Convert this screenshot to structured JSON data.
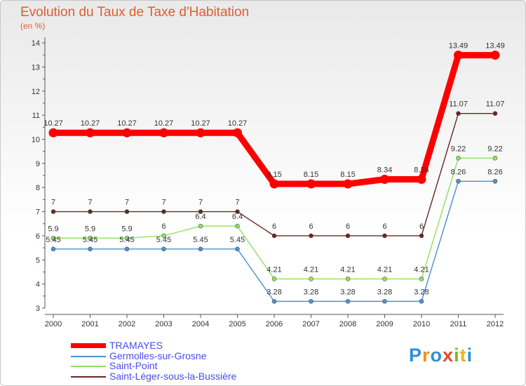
{
  "title": "Evolution du Taux de Taxe d'Habitation",
  "subtitle": "(en %)",
  "logo": {
    "text": "Proxiti",
    "letters": [
      "P",
      "r",
      "o",
      "x",
      "i",
      "t",
      "i"
    ],
    "colors": [
      "#2e8fd6",
      "#f08c1e",
      "#2e8fd6",
      "#e8452c",
      "#7bb81f",
      "#f0b21e",
      "#2e8fd6"
    ]
  },
  "chart_data": {
    "type": "line",
    "x": [
      "2000",
      "2001",
      "2002",
      "2003",
      "2004",
      "2005",
      "2006",
      "2007",
      "2008",
      "2009",
      "2010",
      "2011",
      "2012"
    ],
    "y_ticks": [
      "3",
      "4",
      "5",
      "6",
      "7",
      "8",
      "9",
      "10",
      "11",
      "12",
      "13",
      "14"
    ],
    "ylim": [
      3,
      14
    ],
    "grid": false,
    "legend_position": "bottom-left",
    "series": [
      {
        "name": "TRAMAYES",
        "color": "#ff0000",
        "values": [
          10.27,
          10.27,
          10.27,
          10.27,
          10.27,
          10.27,
          8.15,
          8.15,
          8.15,
          8.34,
          8.34,
          13.49,
          13.49
        ],
        "labels": [
          "10.27",
          "10.27",
          "10.27",
          "10.27",
          "10.27",
          "10.27",
          "8.15",
          "8.15",
          "8.15",
          "8.34",
          "8.34",
          "13.49",
          "13.49"
        ]
      },
      {
        "name": "Germolles-sur-Grosne",
        "color": "#4f8fcf",
        "values": [
          5.45,
          5.45,
          5.45,
          5.45,
          5.45,
          5.45,
          3.28,
          3.28,
          3.28,
          3.28,
          3.28,
          8.26,
          8.26
        ],
        "labels": [
          "5.45",
          "5.45",
          "5.45",
          "5.45",
          "5.45",
          "5.45",
          "3.28",
          "3.28",
          "3.28",
          "3.28",
          "3.28",
          "8.26",
          "8.26"
        ]
      },
      {
        "name": "Saint-Point",
        "color": "#90e060",
        "values": [
          5.9,
          5.9,
          5.9,
          6,
          6.4,
          6.4,
          4.21,
          4.21,
          4.21,
          4.21,
          4.21,
          9.22,
          9.22
        ],
        "labels": [
          "5.9",
          "5.9",
          "5.9",
          "6",
          "6.4",
          "6.4",
          "4.21",
          "4.21",
          "4.21",
          "4.21",
          "4.21",
          "9.22",
          "9.22"
        ]
      },
      {
        "name": "Saint-Léger-sous-la-Bussière",
        "color": "#6b2424",
        "values": [
          7,
          7,
          7,
          7,
          7,
          7,
          6,
          6,
          6,
          6,
          6,
          11.07,
          11.07
        ],
        "labels": [
          "7",
          "7",
          "7",
          "7",
          "7",
          "7",
          "6",
          "6",
          "6",
          "6",
          "6",
          "11.07",
          "11.07"
        ]
      }
    ]
  }
}
